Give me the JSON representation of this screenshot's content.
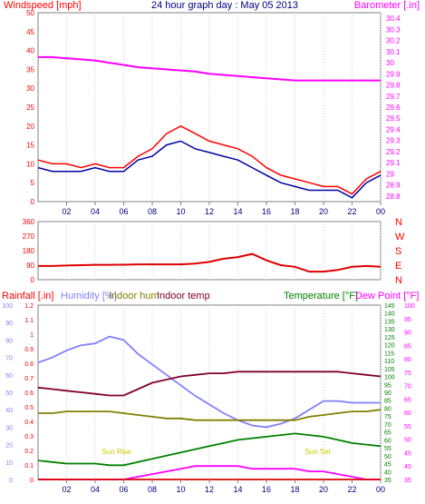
{
  "title": "24 hour graph day : May 05 2013",
  "colors": {
    "wind": "#ff0000",
    "wind_avg": "#0000a0",
    "barometer": "#ff00ff",
    "direction": "#dd0000",
    "temperature": "#008000",
    "dewpoint": "#ff00ff",
    "humidity": "#8080ff",
    "indoor_hum": "#808000",
    "indoor_temp": "#800030",
    "rain": "#dd0000",
    "axis": "#808080",
    "grid": "#cccccc",
    "title": "#000080",
    "solar": "#ffff00"
  },
  "x_ticks": [
    "02",
    "04",
    "06",
    "08",
    "10",
    "12",
    "14",
    "16",
    "18",
    "20",
    "22",
    "00"
  ],
  "chart_data": [
    {
      "type": "line",
      "labels": {
        "left": "Windspeed [mph]",
        "right": "Barometer [.in]"
      },
      "left_ticks": [
        "0",
        "5",
        "10",
        "15",
        "20",
        "25",
        "30",
        "35",
        "40",
        "45",
        "50"
      ],
      "right_ticks": [
        "28.8",
        "28.9",
        "29",
        "29.1",
        "29.2",
        "29.3",
        "29.4",
        "29.5",
        "29.6",
        "29.7",
        "29.8",
        "29.9",
        "30",
        "30.1",
        "30.2",
        "30.3",
        "30.4"
      ],
      "left_range": [
        0,
        50
      ],
      "right_range": [
        28.75,
        30.45
      ],
      "x": [
        0,
        1,
        2,
        3,
        4,
        5,
        6,
        7,
        8,
        9,
        10,
        11,
        12,
        13,
        14,
        15,
        16,
        17,
        18,
        19,
        20,
        21,
        22,
        23,
        24
      ],
      "series": [
        {
          "key": "wind",
          "axis": "left",
          "values": [
            11,
            10,
            10,
            9,
            10,
            9,
            9,
            12,
            14,
            18,
            20,
            18,
            16,
            15,
            14,
            12,
            9,
            7,
            6,
            5,
            4,
            4,
            2,
            6,
            8
          ]
        },
        {
          "key": "wind_avg",
          "axis": "left",
          "values": [
            9,
            8,
            8,
            8,
            9,
            8,
            8,
            11,
            12,
            15,
            16,
            14,
            13,
            12,
            11,
            9,
            7,
            5,
            4,
            3,
            3,
            3,
            1,
            5,
            7
          ]
        },
        {
          "key": "barometer",
          "axis": "right",
          "values": [
            30.05,
            30.05,
            30.04,
            30.03,
            30.02,
            30.0,
            29.98,
            29.96,
            29.95,
            29.94,
            29.93,
            29.92,
            29.9,
            29.89,
            29.88,
            29.87,
            29.86,
            29.85,
            29.84,
            29.84,
            29.84,
            29.84,
            29.84,
            29.84,
            29.84
          ]
        }
      ]
    },
    {
      "type": "line",
      "labels": {
        "right": [
          "N",
          "W",
          "S",
          "E",
          "N"
        ]
      },
      "left_ticks": [
        "0",
        "90",
        "180",
        "270",
        "360"
      ],
      "left_range": [
        0,
        360
      ],
      "x": [
        0,
        1,
        2,
        3,
        4,
        5,
        6,
        7,
        8,
        9,
        10,
        11,
        12,
        13,
        14,
        15,
        16,
        17,
        18,
        19,
        20,
        21,
        22,
        23,
        24
      ],
      "series": [
        {
          "key": "direction",
          "axis": "left",
          "values": [
            85,
            85,
            88,
            90,
            92,
            92,
            93,
            95,
            95,
            95,
            95,
            100,
            110,
            130,
            140,
            160,
            120,
            90,
            80,
            50,
            50,
            60,
            80,
            85,
            80
          ]
        }
      ]
    },
    {
      "type": "line",
      "labels": {
        "rain": "Rainfall [.in]",
        "humidity": "Humidity [%]",
        "indoor_hum": "Indoor hum",
        "indoor_temp": "Indoor temp",
        "temperature": "Temperature [°F]",
        "dewpoint": "Dew Point [°F]"
      },
      "rain_ticks": [
        "0",
        "0.1",
        "0.2",
        "0.3",
        "0.4",
        "0.5",
        "0.6",
        "0.7",
        "0.8",
        "0.9",
        "1",
        "1.1",
        "1.2"
      ],
      "rain_range": [
        0,
        1.2
      ],
      "humidity_ticks": [
        "0",
        "10",
        "20",
        "30",
        "40",
        "50",
        "60",
        "70",
        "80",
        "90",
        "100"
      ],
      "humidity_range": [
        0,
        100
      ],
      "temp_ticks": [
        "35",
        "40",
        "45",
        "50",
        "55",
        "60",
        "65",
        "70",
        "75",
        "80",
        "85",
        "90",
        "95",
        "100",
        "105",
        "110",
        "115",
        "120",
        "125",
        "130",
        "135",
        "140",
        "145"
      ],
      "temp_range": [
        35,
        145
      ],
      "dew_ticks": [
        "35",
        "40",
        "45",
        "50",
        "55",
        "60",
        "65",
        "70",
        "75",
        "80",
        "85",
        "90",
        "95",
        "100"
      ],
      "dew_range": [
        35,
        100
      ],
      "x": [
        0,
        1,
        2,
        3,
        4,
        5,
        6,
        7,
        8,
        9,
        10,
        11,
        12,
        13,
        14,
        15,
        16,
        17,
        18,
        19,
        20,
        21,
        22,
        23,
        24
      ],
      "series": [
        {
          "key": "humidity",
          "axis": "humidity",
          "values": [
            67,
            70,
            74,
            77,
            78,
            82,
            80,
            72,
            66,
            60,
            54,
            48,
            43,
            38,
            34,
            31,
            30,
            32,
            35,
            40,
            45,
            45,
            44,
            44,
            44
          ]
        },
        {
          "key": "indoor_hum",
          "axis": "humidity",
          "values": [
            38,
            38,
            39,
            39,
            39,
            39,
            38,
            37,
            36,
            35,
            35,
            34,
            34,
            34,
            34,
            34,
            34,
            34,
            34,
            36,
            37,
            38,
            39,
            39,
            40
          ]
        },
        {
          "key": "indoor_temp",
          "axis": "temp",
          "values": [
            93,
            92,
            91,
            90,
            89,
            88,
            88,
            92,
            96,
            98,
            100,
            101,
            102,
            102,
            103,
            103,
            103,
            103,
            103,
            103,
            103,
            103,
            102,
            101,
            100
          ]
        },
        {
          "key": "temperature",
          "axis": "temp",
          "values": [
            47,
            46,
            45,
            45,
            45,
            44,
            44,
            46,
            48,
            50,
            52,
            54,
            56,
            58,
            60,
            61,
            62,
            63,
            64,
            63,
            62,
            60,
            58,
            57,
            56
          ]
        },
        {
          "key": "dewpoint",
          "axis": "dew",
          "values": [
            35,
            35,
            35,
            35,
            35,
            35,
            35,
            36,
            37,
            38,
            39,
            40,
            40,
            40,
            40,
            39,
            39,
            39,
            39,
            38,
            38,
            37,
            36,
            35,
            35
          ]
        },
        {
          "key": "rain",
          "axis": "rain",
          "values": [
            0,
            0,
            0,
            0,
            0,
            0,
            0,
            0,
            0,
            0,
            0,
            0,
            0,
            0,
            0,
            0,
            0,
            0,
            0,
            0,
            0,
            0,
            0,
            0,
            0
          ]
        }
      ],
      "annotations": [
        "Sun Rise",
        "Sun Set"
      ]
    }
  ]
}
